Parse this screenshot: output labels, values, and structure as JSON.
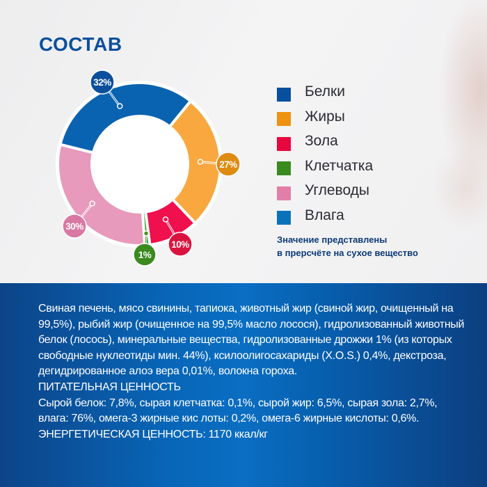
{
  "header": {
    "title": "СОСТАВ"
  },
  "chart_data": {
    "type": "pie",
    "title": "СОСТАВ",
    "donut": true,
    "categories": [
      "Белки",
      "Жиры",
      "Зола",
      "Клетчатка",
      "Углеводы",
      "Влага"
    ],
    "values": [
      32,
      27,
      10,
      1,
      30,
      0
    ],
    "value_labels": [
      "32%",
      "27%",
      "10%",
      "1%",
      "30%",
      ""
    ],
    "colors": [
      "#0a63b0",
      "#f9a83f",
      "#f0104e",
      "#3f9623",
      "#e79abb",
      "#0b78bf"
    ],
    "badge_colors": [
      "#0b4f9c",
      "#de8b12",
      "#d9143f",
      "#3a8a1f",
      "#d978a2",
      ""
    ],
    "legend_position": "right",
    "note": "Значение представлены в прерсчёте на сухое вещество"
  },
  "legend": {
    "items": [
      {
        "label": "Белки",
        "color": "#0a4f9e"
      },
      {
        "label": "Жиры",
        "color": "#ed9211"
      },
      {
        "label": "Зола",
        "color": "#e6073f"
      },
      {
        "label": "Клетчатка",
        "color": "#3a8a1f"
      },
      {
        "label": "Углеводы",
        "color": "#e27fa8"
      },
      {
        "label": "Влага",
        "color": "#0b72ba"
      }
    ],
    "note_line1": "Значение представлены",
    "note_line2": "в прерсчёте на сухое вещество"
  },
  "badges": [
    {
      "label": "32%",
      "color": "#0b4f9c"
    },
    {
      "label": "27%",
      "color": "#de8b12"
    },
    {
      "label": "10%",
      "color": "#d9143f"
    },
    {
      "label": "1%",
      "color": "#3a8a1f"
    },
    {
      "label": "30%",
      "color": "#d978a2"
    }
  ],
  "composition": {
    "ingredients": "Свиная печень, мясо свинины, тапиока, животный жир (свиной жир, очищенный на 99,5%), рыбий жир (очищенное на 99,5% масло лосося), гидролизованный животный белок (лосось), минеральные вещества, гидролизованные дрожжи 1% (из которых свободные нуклеотиды мин. 44%), ксилоолигосахариды (X.O.S.) 0,4%, декстроза, дегидрированное алоэ вера 0,01%, волокна гороха.",
    "nutrition_heading": "ПИТАТЕЛЬНАЯ ЦЕННОСТЬ",
    "nutrition_text": "Сырой белок: 7,8%, сырая клетчатка: 0,1%, сырой жир: 6,5%, сырая зола: 2,7%, влага: 76%, омега-3 жирные кис лоты: 0,2%, омега-6 жирные кислоты: 0,6%.",
    "energy": "ЭНЕРГЕТИЧЕСКАЯ ЦЕННОСТЬ: 1170 ккал/кг"
  }
}
